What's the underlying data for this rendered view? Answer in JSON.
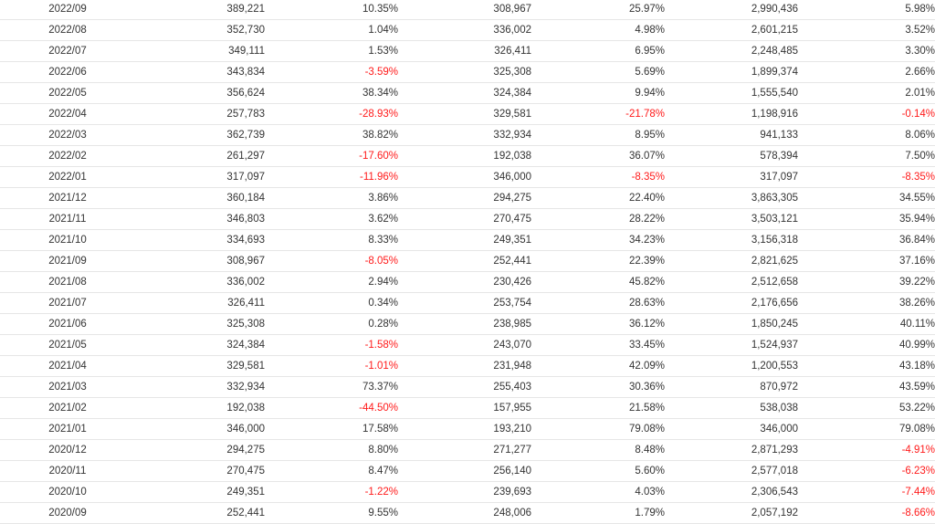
{
  "colors": {
    "negative": "#ff1a1a",
    "text": "#333333",
    "border": "#e6e6e6"
  },
  "table": {
    "rows": [
      [
        "2022/09",
        "389,221",
        "10.35%",
        "308,967",
        "25.97%",
        "2,990,436",
        "5.98%"
      ],
      [
        "2022/08",
        "352,730",
        "1.04%",
        "336,002",
        "4.98%",
        "2,601,215",
        "3.52%"
      ],
      [
        "2022/07",
        "349,111",
        "1.53%",
        "326,411",
        "6.95%",
        "2,248,485",
        "3.30%"
      ],
      [
        "2022/06",
        "343,834",
        "-3.59%",
        "325,308",
        "5.69%",
        "1,899,374",
        "2.66%"
      ],
      [
        "2022/05",
        "356,624",
        "38.34%",
        "324,384",
        "9.94%",
        "1,555,540",
        "2.01%"
      ],
      [
        "2022/04",
        "257,783",
        "-28.93%",
        "329,581",
        "-21.78%",
        "1,198,916",
        "-0.14%"
      ],
      [
        "2022/03",
        "362,739",
        "38.82%",
        "332,934",
        "8.95%",
        "941,133",
        "8.06%"
      ],
      [
        "2022/02",
        "261,297",
        "-17.60%",
        "192,038",
        "36.07%",
        "578,394",
        "7.50%"
      ],
      [
        "2022/01",
        "317,097",
        "-11.96%",
        "346,000",
        "-8.35%",
        "317,097",
        "-8.35%"
      ],
      [
        "2021/12",
        "360,184",
        "3.86%",
        "294,275",
        "22.40%",
        "3,863,305",
        "34.55%"
      ],
      [
        "2021/11",
        "346,803",
        "3.62%",
        "270,475",
        "28.22%",
        "3,503,121",
        "35.94%"
      ],
      [
        "2021/10",
        "334,693",
        "8.33%",
        "249,351",
        "34.23%",
        "3,156,318",
        "36.84%"
      ],
      [
        "2021/09",
        "308,967",
        "-8.05%",
        "252,441",
        "22.39%",
        "2,821,625",
        "37.16%"
      ],
      [
        "2021/08",
        "336,002",
        "2.94%",
        "230,426",
        "45.82%",
        "2,512,658",
        "39.22%"
      ],
      [
        "2021/07",
        "326,411",
        "0.34%",
        "253,754",
        "28.63%",
        "2,176,656",
        "38.26%"
      ],
      [
        "2021/06",
        "325,308",
        "0.28%",
        "238,985",
        "36.12%",
        "1,850,245",
        "40.11%"
      ],
      [
        "2021/05",
        "324,384",
        "-1.58%",
        "243,070",
        "33.45%",
        "1,524,937",
        "40.99%"
      ],
      [
        "2021/04",
        "329,581",
        "-1.01%",
        "231,948",
        "42.09%",
        "1,200,553",
        "43.18%"
      ],
      [
        "2021/03",
        "332,934",
        "73.37%",
        "255,403",
        "30.36%",
        "870,972",
        "43.59%"
      ],
      [
        "2021/02",
        "192,038",
        "-44.50%",
        "157,955",
        "21.58%",
        "538,038",
        "53.22%"
      ],
      [
        "2021/01",
        "346,000",
        "17.58%",
        "193,210",
        "79.08%",
        "346,000",
        "79.08%"
      ],
      [
        "2020/12",
        "294,275",
        "8.80%",
        "271,277",
        "8.48%",
        "2,871,293",
        "-4.91%"
      ],
      [
        "2020/11",
        "270,475",
        "8.47%",
        "256,140",
        "5.60%",
        "2,577,018",
        "-6.23%"
      ],
      [
        "2020/10",
        "249,351",
        "-1.22%",
        "239,693",
        "4.03%",
        "2,306,543",
        "-7.44%"
      ],
      [
        "2020/09",
        "252,441",
        "9.55%",
        "248,006",
        "1.79%",
        "2,057,192",
        "-8.66%"
      ]
    ]
  }
}
